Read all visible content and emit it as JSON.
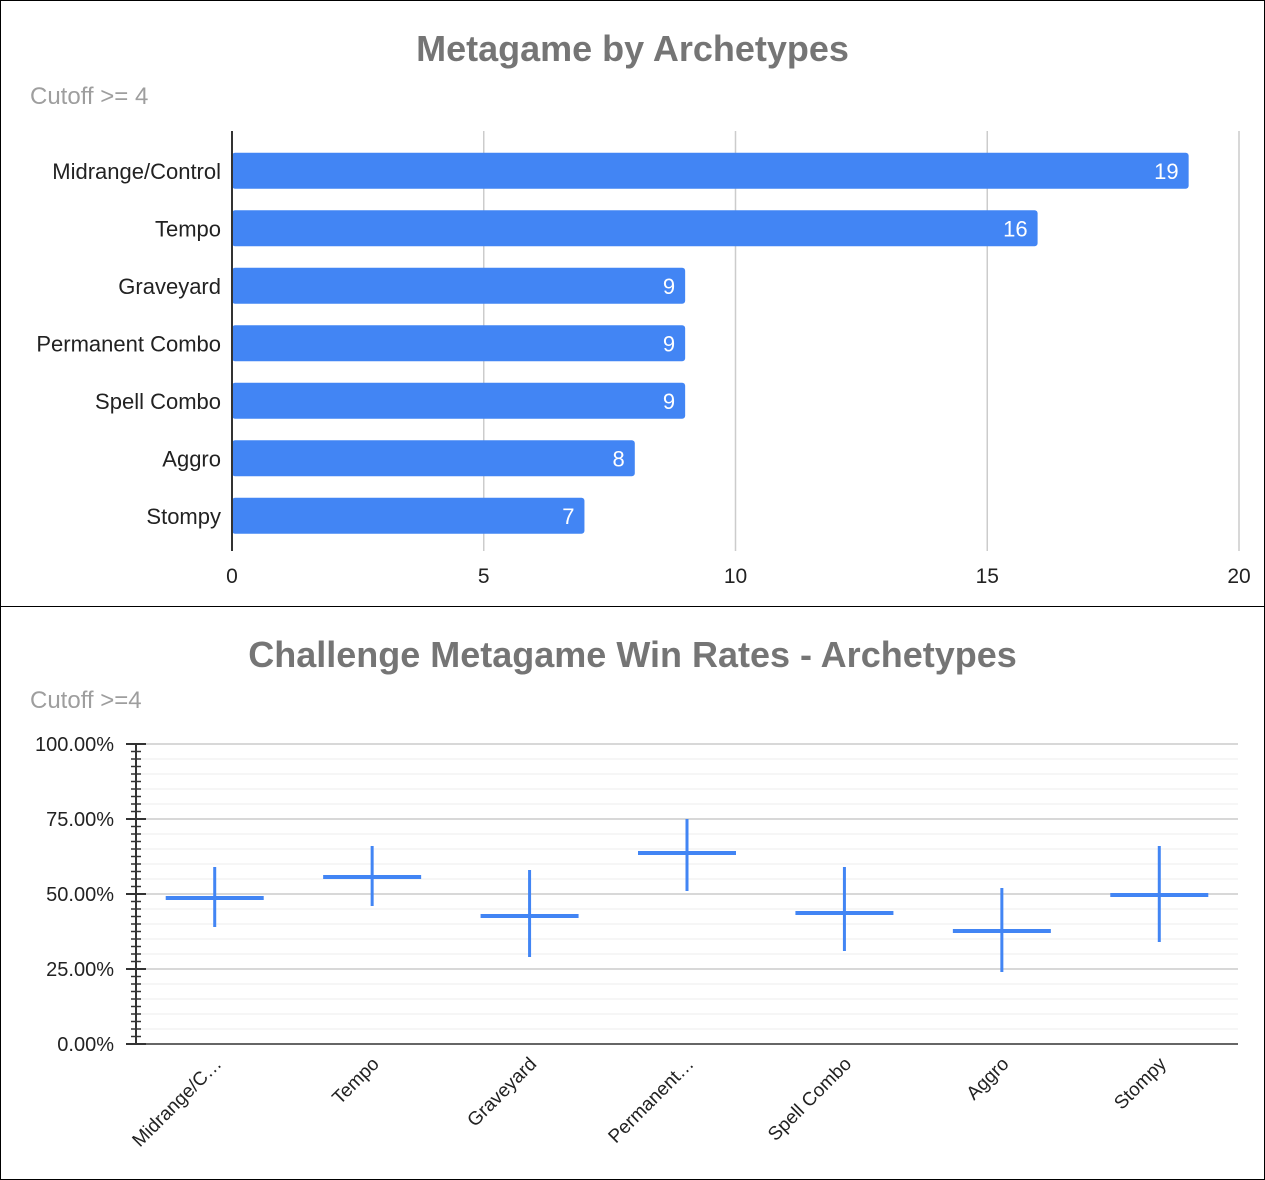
{
  "chart_data": [
    {
      "type": "bar",
      "orientation": "horizontal",
      "title": "Metagame by Archetypes",
      "subtitle": "Cutoff >= 4",
      "categories": [
        "Midrange/Control",
        "Tempo",
        "Graveyard",
        "Permanent Combo",
        "Spell Combo",
        "Aggro",
        "Stompy"
      ],
      "values": [
        19,
        16,
        9,
        9,
        9,
        8,
        7
      ],
      "data_labels": [
        "19",
        "16",
        "9",
        "9",
        "9",
        "8",
        "7"
      ],
      "xlim": [
        0,
        20
      ],
      "xticks": [
        0,
        5,
        10,
        15,
        20
      ],
      "xtick_labels": [
        "0",
        "5",
        "10",
        "15",
        "20"
      ],
      "grid": true,
      "legend": "none",
      "color": "#4285f4"
    },
    {
      "type": "candlestick",
      "title": "Challenge Metagame Win Rates - Archetypes",
      "subtitle": "Cutoff >=4",
      "categories": [
        "Midrange/Control",
        "Tempo",
        "Graveyard",
        "Permanent Combo",
        "Spell Combo",
        "Aggro",
        "Stompy"
      ],
      "category_labels": [
        "Midrange/C…",
        "Tempo",
        "Graveyard",
        "Permanent…",
        "Spell Combo",
        "Aggro",
        "Stompy"
      ],
      "low": [
        0.39,
        0.46,
        0.29,
        0.51,
        0.31,
        0.24,
        0.34
      ],
      "high": [
        0.59,
        0.66,
        0.58,
        0.75,
        0.59,
        0.52,
        0.66
      ],
      "open": [
        0.49,
        0.55,
        0.43,
        0.63,
        0.44,
        0.37,
        0.5
      ],
      "close": [
        0.49,
        0.56,
        0.43,
        0.64,
        0.44,
        0.38,
        0.5
      ],
      "ylim": [
        0,
        1
      ],
      "yticks": [
        0,
        0.25,
        0.5,
        0.75,
        1.0
      ],
      "ytick_labels": [
        "0.00%",
        "25.00%",
        "50.00%",
        "75.00%",
        "100.00%"
      ],
      "grid": true,
      "legend": "none",
      "color": "#4285f4"
    }
  ]
}
